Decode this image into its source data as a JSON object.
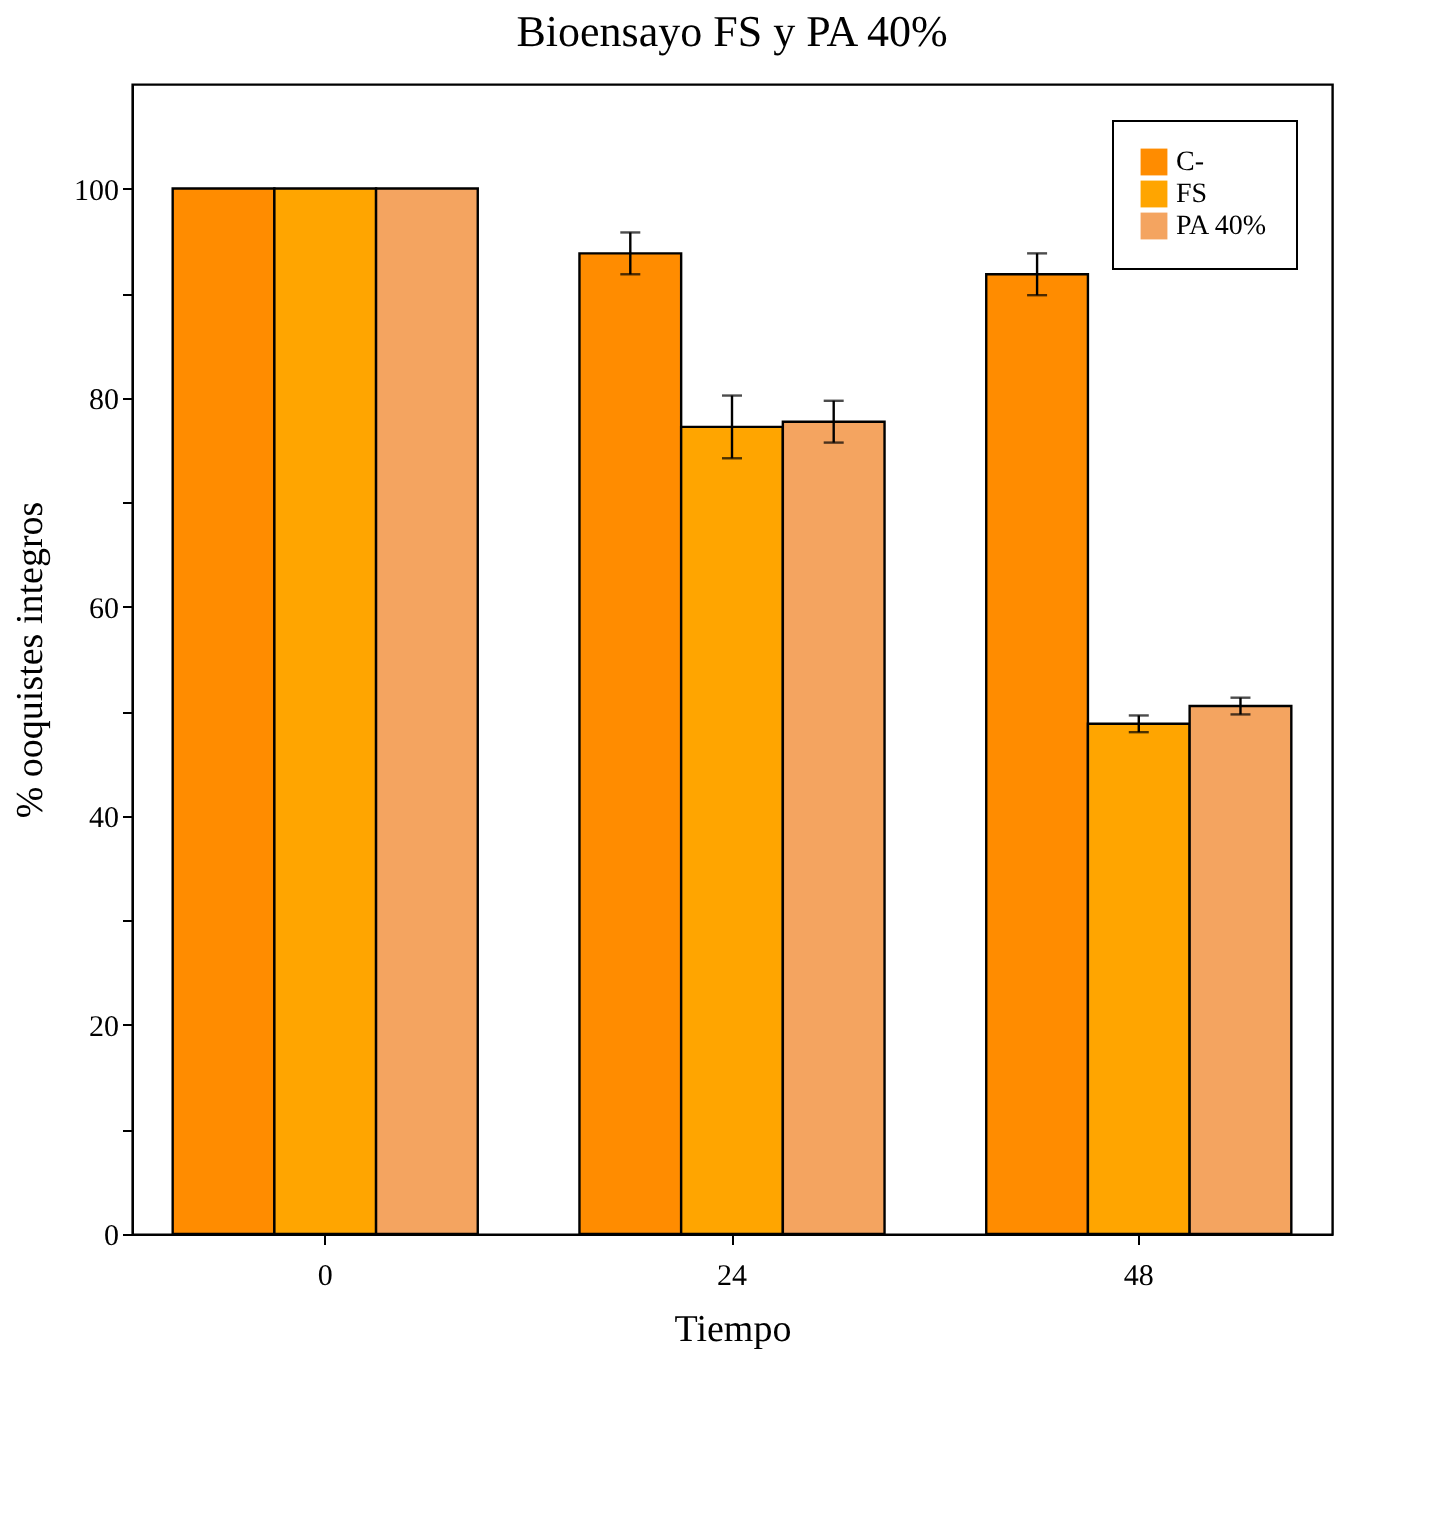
{
  "chart_data": {
    "type": "bar",
    "title": "Bioensayo FS y PA 40%",
    "xlabel": "Tiempo",
    "ylabel": "% ooquistes integros",
    "categories": [
      "0",
      "24",
      "48"
    ],
    "series": [
      {
        "name": "C-",
        "color": "#ff8c00",
        "values": [
          100,
          93.8,
          91.8
        ],
        "errors": [
          null,
          2,
          2
        ]
      },
      {
        "name": "FS",
        "color": "#ffa500",
        "values": [
          100,
          77.2,
          48.8
        ],
        "errors": [
          null,
          3,
          0.8
        ]
      },
      {
        "name": "PA 40%",
        "color": "#f4a460",
        "values": [
          100,
          77.7,
          50.5
        ],
        "errors": [
          null,
          2,
          0.8
        ]
      }
    ],
    "ylim": [
      0,
      110
    ],
    "yticks": [
      0,
      {
        "value": 10,
        "label": null
      },
      20,
      {
        "value": 30,
        "label": null
      },
      40,
      {
        "value": 50,
        "label": null
      },
      60,
      {
        "value": 70,
        "label": null
      },
      80,
      {
        "value": 90,
        "label": null
      },
      100
    ],
    "grid": false,
    "legend": "top right"
  }
}
